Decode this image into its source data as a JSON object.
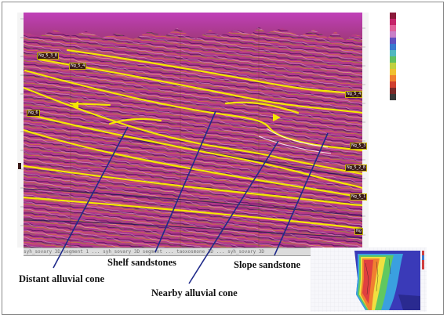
{
  "annotations": {
    "distant_alluvial_cone": "Distant alluvial cone",
    "shelf_sandstones": "Shelf sandstones",
    "nearby_alluvial_cone": "Nearby alluvial cone",
    "slope_sandstone": "Slope sandstone"
  },
  "colors": {
    "background": "#b23a8a",
    "horizon": "#f2e600",
    "pointer": "#1f2a8a",
    "tag": "#3a1a18"
  }
}
